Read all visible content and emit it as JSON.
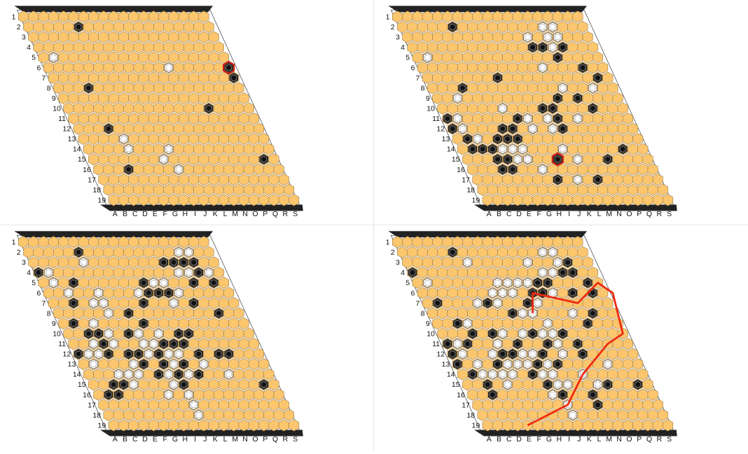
{
  "rows": [
    "1",
    "2",
    "3",
    "4",
    "5",
    "6",
    "7",
    "8",
    "9",
    "10",
    "11",
    "12",
    "13",
    "14",
    "15",
    "16",
    "17",
    "18",
    "19"
  ],
  "columns": [
    "A",
    "B",
    "C",
    "D",
    "E",
    "F",
    "G",
    "H",
    "I",
    "J",
    "K",
    "L",
    "M",
    "N",
    "O",
    "P",
    "Q",
    "R",
    "S"
  ],
  "colors": {
    "cell": "#fbc66e",
    "cell_edge": "#9a7a45",
    "border": "#222222",
    "black_stone": "#2a2a2a",
    "white_stone": "#ffffff",
    "last_move": "#d01010",
    "win_path": "#ef2a10"
  },
  "boards": [
    {
      "name": "top-left",
      "black": [
        [
          2,
          6
        ],
        [
          6,
          19
        ],
        [
          7,
          19
        ],
        [
          8,
          4
        ],
        [
          10,
          15
        ],
        [
          12,
          4
        ],
        [
          16,
          4
        ],
        [
          15,
          18
        ]
      ],
      "white": [
        [
          5,
          2
        ],
        [
          6,
          13
        ],
        [
          13,
          5
        ],
        [
          14,
          5
        ],
        [
          14,
          9
        ],
        [
          15,
          8
        ],
        [
          16,
          9
        ]
      ],
      "last": [
        6,
        19
      ],
      "path": []
    },
    {
      "name": "top-right",
      "black": [
        [
          2,
          6
        ],
        [
          4,
          13
        ],
        [
          4,
          14
        ],
        [
          4,
          16
        ],
        [
          5,
          15
        ],
        [
          6,
          17
        ],
        [
          7,
          18
        ],
        [
          8,
          4
        ],
        [
          9,
          15
        ],
        [
          10,
          16
        ],
        [
          11,
          8
        ],
        [
          12,
          7
        ],
        [
          13,
          7
        ],
        [
          10,
          12
        ],
        [
          11,
          12
        ],
        [
          12,
          12
        ],
        [
          14,
          3
        ],
        [
          14,
          4
        ],
        [
          14,
          2
        ],
        [
          13,
          2
        ],
        [
          12,
          1
        ],
        [
          13,
          5
        ],
        [
          15,
          4
        ],
        [
          15,
          5
        ],
        [
          16,
          4
        ],
        [
          16,
          5
        ],
        [
          11,
          1
        ],
        [
          10,
          11
        ],
        [
          9,
          13
        ],
        [
          7,
          8
        ],
        [
          15,
          10
        ],
        [
          15,
          15
        ],
        [
          17,
          9
        ],
        [
          17,
          13
        ],
        [
          14,
          17
        ],
        [
          12,
          6
        ],
        [
          13,
          6
        ]
      ],
      "white": [
        [
          2,
          15
        ],
        [
          2,
          16
        ],
        [
          3,
          13
        ],
        [
          3,
          15
        ],
        [
          3,
          16
        ],
        [
          4,
          15
        ],
        [
          5,
          2
        ],
        [
          6,
          13
        ],
        [
          9,
          3
        ],
        [
          10,
          7
        ],
        [
          11,
          2
        ],
        [
          11,
          9
        ],
        [
          11,
          11
        ],
        [
          12,
          9
        ],
        [
          12,
          11
        ],
        [
          12,
          2
        ],
        [
          13,
          3
        ],
        [
          14,
          5
        ],
        [
          14,
          6
        ],
        [
          14,
          7
        ],
        [
          15,
          7
        ],
        [
          15,
          6
        ],
        [
          14,
          11
        ],
        [
          15,
          12
        ],
        [
          17,
          11
        ],
        [
          17,
          9
        ],
        [
          16,
          8
        ],
        [
          8,
          17
        ],
        [
          8,
          14
        ],
        [
          11,
          14
        ]
      ],
      "last": [
        15,
        10
      ],
      "path": []
    },
    {
      "name": "bottom-left",
      "black": [
        [
          2,
          6
        ],
        [
          3,
          14
        ],
        [
          3,
          15
        ],
        [
          3,
          16
        ],
        [
          3,
          17
        ],
        [
          4,
          17
        ],
        [
          5,
          4
        ],
        [
          5,
          16
        ],
        [
          5,
          11
        ],
        [
          6,
          11
        ],
        [
          6,
          12
        ],
        [
          6,
          13
        ],
        [
          7,
          3
        ],
        [
          7,
          10
        ],
        [
          7,
          15
        ],
        [
          8,
          8
        ],
        [
          8,
          17
        ],
        [
          9,
          2
        ],
        [
          9,
          9
        ],
        [
          10,
          3
        ],
        [
          10,
          4
        ],
        [
          10,
          7
        ],
        [
          10,
          12
        ],
        [
          10,
          13
        ],
        [
          11,
          4
        ],
        [
          11,
          10
        ],
        [
          11,
          11
        ],
        [
          11,
          12
        ],
        [
          12,
          1
        ],
        [
          12,
          6
        ],
        [
          12,
          7
        ],
        [
          12,
          9
        ],
        [
          12,
          13
        ],
        [
          12,
          15
        ],
        [
          12,
          16
        ],
        [
          13,
          7
        ],
        [
          13,
          9
        ],
        [
          13,
          11
        ],
        [
          14,
          8
        ],
        [
          14,
          10
        ],
        [
          14,
          12
        ],
        [
          15,
          3
        ],
        [
          15,
          4
        ],
        [
          15,
          10
        ],
        [
          16,
          2
        ],
        [
          16,
          3
        ],
        [
          5,
          18
        ],
        [
          6,
          20
        ],
        [
          15,
          18
        ],
        [
          4,
          1
        ],
        [
          12,
          4
        ]
      ],
      "white": [
        [
          2,
          16
        ],
        [
          2,
          17
        ],
        [
          3,
          6
        ],
        [
          4,
          2
        ],
        [
          4,
          15
        ],
        [
          4,
          16
        ],
        [
          4,
          18
        ],
        [
          5,
          2
        ],
        [
          5,
          12
        ],
        [
          5,
          13
        ],
        [
          6,
          3
        ],
        [
          6,
          6
        ],
        [
          6,
          10
        ],
        [
          6,
          14
        ],
        [
          7,
          5
        ],
        [
          7,
          6
        ],
        [
          7,
          13
        ],
        [
          8,
          6
        ],
        [
          9,
          4
        ],
        [
          10,
          5
        ],
        [
          10,
          8
        ],
        [
          10,
          10
        ],
        [
          11,
          3
        ],
        [
          11,
          5
        ],
        [
          11,
          8
        ],
        [
          11,
          9
        ],
        [
          12,
          2
        ],
        [
          12,
          3
        ],
        [
          12,
          8
        ],
        [
          12,
          10
        ],
        [
          12,
          11
        ],
        [
          13,
          2
        ],
        [
          13,
          6
        ],
        [
          13,
          10
        ],
        [
          14,
          4
        ],
        [
          14,
          5
        ],
        [
          14,
          6
        ],
        [
          14,
          9
        ],
        [
          14,
          11
        ],
        [
          14,
          15
        ],
        [
          15,
          5
        ],
        [
          15,
          9
        ],
        [
          16,
          8
        ],
        [
          16,
          10
        ],
        [
          17,
          10
        ],
        [
          18,
          10
        ],
        [
          13,
          13
        ]
      ],
      "last": null,
      "path": []
    },
    {
      "name": "bottom-right",
      "black": [
        [
          2,
          6
        ],
        [
          3,
          17
        ],
        [
          4,
          16
        ],
        [
          4,
          17
        ],
        [
          5,
          13
        ],
        [
          5,
          14
        ],
        [
          6,
          12
        ],
        [
          6,
          13
        ],
        [
          6,
          16
        ],
        [
          6,
          18
        ],
        [
          7,
          2
        ],
        [
          7,
          7
        ],
        [
          7,
          11
        ],
        [
          8,
          9
        ],
        [
          8,
          17
        ],
        [
          9,
          3
        ],
        [
          9,
          16
        ],
        [
          10,
          4
        ],
        [
          10,
          6
        ],
        [
          10,
          10
        ],
        [
          10,
          13
        ],
        [
          11,
          1
        ],
        [
          11,
          3
        ],
        [
          11,
          8
        ],
        [
          11,
          11
        ],
        [
          11,
          14
        ],
        [
          12,
          1
        ],
        [
          12,
          7
        ],
        [
          12,
          10
        ],
        [
          12,
          14
        ],
        [
          13,
          1
        ],
        [
          13,
          5
        ],
        [
          13,
          9
        ],
        [
          13,
          11
        ],
        [
          14,
          2
        ],
        [
          14,
          8
        ],
        [
          15,
          3
        ],
        [
          15,
          9
        ],
        [
          16,
          3
        ],
        [
          16,
          10
        ],
        [
          15,
          15
        ],
        [
          16,
          13
        ],
        [
          17,
          13
        ],
        [
          4,
          1
        ],
        [
          5,
          18
        ],
        [
          15,
          18
        ],
        [
          12,
          6
        ]
      ],
      "white": [
        [
          2,
          15
        ],
        [
          2,
          16
        ],
        [
          3,
          7
        ],
        [
          3,
          13
        ],
        [
          3,
          16
        ],
        [
          4,
          14
        ],
        [
          4,
          15
        ],
        [
          5,
          2
        ],
        [
          5,
          9
        ],
        [
          5,
          10
        ],
        [
          5,
          11
        ],
        [
          5,
          12
        ],
        [
          5,
          13
        ],
        [
          6,
          8
        ],
        [
          6,
          9
        ],
        [
          6,
          10
        ],
        [
          6,
          14
        ],
        [
          7,
          6
        ],
        [
          7,
          8
        ],
        [
          7,
          12
        ],
        [
          8,
          10
        ],
        [
          8,
          11
        ],
        [
          9,
          4
        ],
        [
          9,
          12
        ],
        [
          10,
          7
        ],
        [
          10,
          9
        ],
        [
          10,
          11
        ],
        [
          10,
          12
        ],
        [
          11,
          2
        ],
        [
          11,
          6
        ],
        [
          11,
          12
        ],
        [
          12,
          2
        ],
        [
          12,
          5
        ],
        [
          12,
          8
        ],
        [
          12,
          9
        ],
        [
          12,
          12
        ],
        [
          13,
          3
        ],
        [
          13,
          6
        ],
        [
          13,
          7
        ],
        [
          13,
          8
        ],
        [
          13,
          10
        ],
        [
          14,
          3
        ],
        [
          14,
          4
        ],
        [
          14,
          5
        ],
        [
          14,
          6
        ],
        [
          14,
          9
        ],
        [
          14,
          10
        ],
        [
          14,
          13
        ],
        [
          15,
          5
        ],
        [
          15,
          10
        ],
        [
          15,
          11
        ],
        [
          16,
          9
        ],
        [
          17,
          10
        ],
        [
          18,
          10
        ],
        [
          8,
          15
        ],
        [
          13,
          16
        ],
        [
          15,
          14
        ]
      ],
      "last": null,
      "path": [
        [
          8,
          11
        ],
        [
          6,
          12
        ],
        [
          7,
          16
        ],
        [
          5,
          19
        ],
        [
          6,
          20
        ],
        [
          10,
          19
        ],
        [
          11,
          17
        ],
        [
          14,
          13
        ],
        [
          17,
          10
        ],
        [
          19,
          5
        ]
      ]
    }
  ]
}
